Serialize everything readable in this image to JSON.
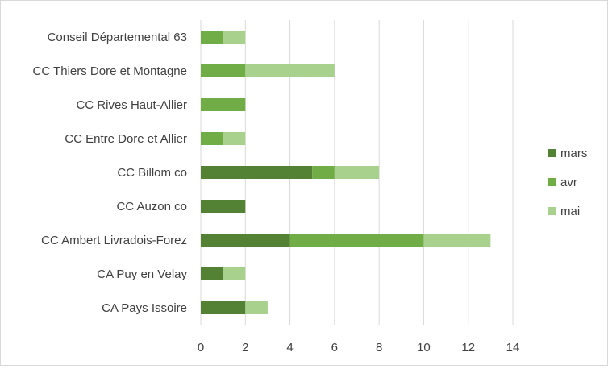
{
  "chart_data": {
    "type": "bar",
    "orientation": "horizontal",
    "stacked": true,
    "categories": [
      "Conseil Départemental 63",
      "CC Thiers Dore et Montagne",
      "CC Rives Haut-Allier",
      "CC Entre Dore et Allier",
      "CC Billom co",
      "CC Auzon co",
      "CC Ambert Livradois-Forez",
      "CA Puy en Velay",
      "CA Pays Issoire"
    ],
    "series": [
      {
        "name": "mars",
        "color": "#548235",
        "values": [
          0,
          0,
          0,
          0,
          5,
          2,
          4,
          1,
          2
        ]
      },
      {
        "name": "avr",
        "color": "#70ad47",
        "values": [
          1,
          2,
          2,
          1,
          1,
          0,
          6,
          0,
          0
        ]
      },
      {
        "name": "mai",
        "color": "#a9d18e",
        "values": [
          1,
          4,
          0,
          1,
          2,
          0,
          3,
          1,
          1
        ]
      }
    ],
    "xlim": [
      0,
      14
    ],
    "x_ticks": [
      "0",
      "2",
      "4",
      "6",
      "8",
      "10",
      "12",
      "14"
    ],
    "grid": "vertical",
    "legend_position": "right"
  }
}
